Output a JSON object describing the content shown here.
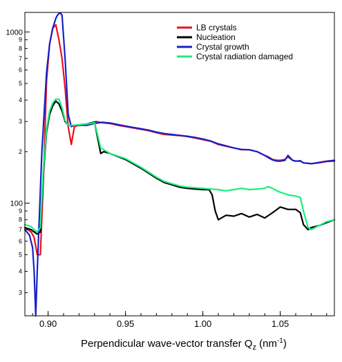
{
  "chart_data": {
    "type": "line",
    "title": "",
    "xlabel": {
      "main": "Perpendicular wave-vector transfer Q",
      "sub": "z",
      "unit_open": " (nm",
      "unit_sup": "-1",
      "unit_close": ")"
    },
    "ylabel": "",
    "xlim": [
      0.885,
      1.085
    ],
    "ylim": [
      22,
      1300
    ],
    "yscale": "log",
    "grid": false,
    "legend_position": "top-right",
    "x_ticks": [
      {
        "value": 0.9,
        "label": "0.90"
      },
      {
        "value": 0.95,
        "label": "0.95"
      },
      {
        "value": 1.0,
        "label": "1.00"
      },
      {
        "value": 1.05,
        "label": "1.05"
      }
    ],
    "y_major_ticks": [
      {
        "value": 100,
        "label": "100"
      },
      {
        "value": 1000,
        "label": "1000"
      }
    ],
    "y_minor_ticks": [
      {
        "value": 30,
        "label": "3"
      },
      {
        "value": 40,
        "label": "4"
      },
      {
        "value": 50,
        "label": "5"
      },
      {
        "value": 60,
        "label": "6"
      },
      {
        "value": 70,
        "label": "7"
      },
      {
        "value": 80,
        "label": "8"
      },
      {
        "value": 90,
        "label": "9"
      },
      {
        "value": 200,
        "label": "2"
      },
      {
        "value": 300,
        "label": "3"
      },
      {
        "value": 400,
        "label": "4"
      },
      {
        "value": 500,
        "label": "5"
      },
      {
        "value": 600,
        "label": "6"
      },
      {
        "value": 700,
        "label": "7"
      },
      {
        "value": 800,
        "label": "8"
      },
      {
        "value": 900,
        "label": "9"
      }
    ],
    "series": [
      {
        "name": "LB crystals",
        "color": "#e8101c",
        "x": [
          0.885,
          0.889,
          0.891,
          0.893,
          0.895,
          0.897,
          0.899,
          0.901,
          0.903,
          0.905,
          0.907,
          0.909,
          0.911,
          0.913,
          0.915,
          0.917,
          0.92,
          0.925,
          0.928,
          0.931,
          0.935,
          0.94,
          0.945,
          0.95,
          0.955,
          0.96,
          0.965,
          0.97,
          0.975,
          0.98,
          0.985,
          0.99,
          0.995,
          1.0,
          1.005,
          1.01,
          1.015,
          1.02,
          1.025,
          1.03,
          1.035,
          1.04,
          1.043,
          1.045,
          1.048,
          1.05,
          1.053,
          1.055,
          1.058,
          1.06,
          1.063,
          1.065,
          1.07,
          1.075,
          1.08,
          1.085
        ],
        "y": [
          72,
          68,
          63,
          50,
          50,
          140,
          520,
          850,
          1050,
          1100,
          900,
          700,
          470,
          280,
          220,
          280,
          285,
          285,
          290,
          300,
          295,
          292,
          285,
          280,
          275,
          270,
          265,
          258,
          252,
          250,
          248,
          245,
          240,
          235,
          230,
          220,
          215,
          210,
          205,
          205,
          200,
          190,
          185,
          180,
          178,
          178,
          180,
          186,
          178,
          176,
          176,
          172,
          170,
          172,
          175,
          176
        ]
      },
      {
        "name": "Nucleation",
        "color": "#000000",
        "x": [
          0.885,
          0.889,
          0.891,
          0.893,
          0.895,
          0.897,
          0.899,
          0.901,
          0.903,
          0.905,
          0.907,
          0.909,
          0.911,
          0.913,
          0.917,
          0.925,
          0.93,
          0.932,
          0.934,
          0.936,
          0.94,
          0.95,
          0.96,
          0.97,
          0.975,
          0.98,
          0.985,
          0.99,
          0.995,
          1.0,
          1.004,
          1.006,
          1.008,
          1.01,
          1.015,
          1.02,
          1.025,
          1.03,
          1.035,
          1.04,
          1.045,
          1.05,
          1.055,
          1.06,
          1.063,
          1.065,
          1.068,
          1.07,
          1.075,
          1.08,
          1.085
        ],
        "y": [
          72,
          70,
          68,
          66,
          68,
          150,
          260,
          330,
          370,
          395,
          380,
          345,
          300,
          285,
          285,
          290,
          298,
          240,
          195,
          200,
          195,
          180,
          160,
          140,
          132,
          128,
          124,
          122,
          121,
          120,
          120,
          112,
          90,
          80,
          85,
          84,
          87,
          83,
          86,
          82,
          88,
          95,
          92,
          92,
          88,
          75,
          70,
          72,
          74,
          77,
          80
        ]
      },
      {
        "name": "Crystal growth",
        "color": "#1520c8",
        "x": [
          0.885,
          0.888,
          0.89,
          0.891,
          0.892,
          0.893,
          0.894,
          0.896,
          0.899,
          0.901,
          0.903,
          0.905,
          0.906,
          0.907,
          0.908,
          0.909,
          0.911,
          0.913,
          0.915,
          0.917,
          0.92,
          0.925,
          0.93,
          0.935,
          0.94,
          0.945,
          0.95,
          0.955,
          0.96,
          0.965,
          0.97,
          0.975,
          0.98,
          0.985,
          0.99,
          0.995,
          1.0,
          1.005,
          1.01,
          1.015,
          1.02,
          1.025,
          1.03,
          1.035,
          1.04,
          1.043,
          1.045,
          1.048,
          1.05,
          1.053,
          1.055,
          1.058,
          1.06,
          1.063,
          1.065,
          1.07,
          1.075,
          1.08,
          1.085
        ],
        "y": [
          70,
          65,
          55,
          40,
          22,
          40,
          70,
          200,
          580,
          850,
          1050,
          1200,
          1250,
          1280,
          1290,
          1250,
          700,
          330,
          280,
          285,
          285,
          285,
          292,
          297,
          294,
          288,
          282,
          277,
          272,
          267,
          260,
          255,
          252,
          249,
          246,
          242,
          237,
          231,
          222,
          216,
          210,
          206,
          205,
          200,
          190,
          183,
          179,
          176,
          176,
          178,
          190,
          178,
          176,
          177,
          172,
          170,
          173,
          176,
          178
        ]
      },
      {
        "name": "Crystal radiation damaged",
        "color": "#19ee7c",
        "x": [
          0.885,
          0.889,
          0.891,
          0.893,
          0.895,
          0.897,
          0.899,
          0.901,
          0.903,
          0.905,
          0.907,
          0.909,
          0.911,
          0.913,
          0.917,
          0.925,
          0.93,
          0.932,
          0.934,
          0.936,
          0.94,
          0.95,
          0.96,
          0.97,
          0.975,
          0.98,
          0.985,
          0.99,
          0.995,
          1.0,
          1.005,
          1.01,
          1.015,
          1.02,
          1.025,
          1.03,
          1.035,
          1.04,
          1.042,
          1.045,
          1.048,
          1.05,
          1.055,
          1.06,
          1.063,
          1.065,
          1.068,
          1.07,
          1.075,
          1.08,
          1.085
        ],
        "y": [
          75,
          73,
          70,
          68,
          72,
          160,
          270,
          345,
          385,
          405,
          405,
          360,
          305,
          285,
          285,
          290,
          295,
          250,
          210,
          205,
          195,
          182,
          162,
          142,
          134,
          130,
          126,
          124,
          123,
          122,
          121,
          120,
          118,
          120,
          122,
          120,
          121,
          122,
          125,
          122,
          118,
          116,
          112,
          110,
          108,
          90,
          72,
          70,
          74,
          78,
          80
        ]
      }
    ]
  }
}
